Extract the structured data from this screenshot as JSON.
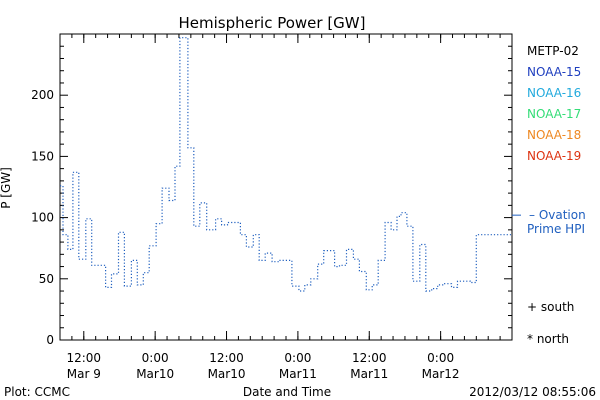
{
  "chart_data": {
    "type": "line",
    "title": "Hemispheric Power [GW]",
    "xlabel": "Date and Time",
    "ylabel": "P [GW]",
    "ylim": [
      0,
      250
    ],
    "yticks": [
      0,
      50,
      100,
      150,
      200
    ],
    "xlim": [
      "2012-03-09T08:00",
      "2012-03-12T12:00"
    ],
    "xticks": [
      {
        "time": "2012-03-09T12:00",
        "top": "12:00",
        "bottom": "Mar 9"
      },
      {
        "time": "2012-03-10T00:00",
        "top": "0:00",
        "bottom": "Mar10"
      },
      {
        "time": "2012-03-10T12:00",
        "top": "12:00",
        "bottom": "Mar10"
      },
      {
        "time": "2012-03-11T00:00",
        "top": "0:00",
        "bottom": "Mar11"
      },
      {
        "time": "2012-03-11T12:00",
        "top": "12:00",
        "bottom": "Mar11"
      },
      {
        "time": "2012-03-12T00:00",
        "top": "0:00",
        "bottom": "Mar12"
      }
    ],
    "legend": [
      {
        "name": "METP-02",
        "color": "#000000"
      },
      {
        "name": "NOAA-15",
        "color": "#1f3fbf"
      },
      {
        "name": "NOAA-16",
        "color": "#22aadd"
      },
      {
        "name": "NOAA-17",
        "color": "#33dd77"
      },
      {
        "name": "NOAA-18",
        "color": "#ee8822"
      },
      {
        "name": "NOAA-19",
        "color": "#dd3311"
      }
    ],
    "ovation_label": [
      "– Ovation",
      "Prime HPI"
    ],
    "ovation_value": 102,
    "south_label": "+ south",
    "north_label": "* north",
    "series": [
      {
        "color": "#1f5fbf",
        "style": "dotted-step",
        "points": [
          [
            "2012-03-09T08:00",
            126
          ],
          [
            "2012-03-09T08:30",
            86
          ],
          [
            "2012-03-09T09:20",
            74
          ],
          [
            "2012-03-09T10:10",
            137
          ],
          [
            "2012-03-09T11:10",
            66
          ],
          [
            "2012-03-09T12:20",
            99
          ],
          [
            "2012-03-09T13:20",
            61
          ],
          [
            "2012-03-09T15:40",
            43
          ],
          [
            "2012-03-09T16:40",
            54
          ],
          [
            "2012-03-09T17:50",
            88
          ],
          [
            "2012-03-09T18:50",
            44
          ],
          [
            "2012-03-09T20:00",
            65
          ],
          [
            "2012-03-09T21:00",
            45
          ],
          [
            "2012-03-09T22:00",
            55
          ],
          [
            "2012-03-09T23:00",
            77
          ],
          [
            "2012-03-10T00:10",
            95
          ],
          [
            "2012-03-10T01:10",
            124
          ],
          [
            "2012-03-10T02:20",
            114
          ],
          [
            "2012-03-10T03:20",
            142
          ],
          [
            "2012-03-10T04:10",
            247
          ],
          [
            "2012-03-10T05:30",
            157
          ],
          [
            "2012-03-10T06:30",
            93
          ],
          [
            "2012-03-10T07:30",
            112
          ],
          [
            "2012-03-10T08:40",
            90
          ],
          [
            "2012-03-10T10:10",
            99
          ],
          [
            "2012-03-10T11:10",
            94
          ],
          [
            "2012-03-10T12:10",
            96
          ],
          [
            "2012-03-10T14:20",
            86
          ],
          [
            "2012-03-10T15:20",
            76
          ],
          [
            "2012-03-10T16:30",
            86
          ],
          [
            "2012-03-10T17:30",
            65
          ],
          [
            "2012-03-10T18:30",
            71
          ],
          [
            "2012-03-10T19:40",
            64
          ],
          [
            "2012-03-10T20:40",
            65
          ],
          [
            "2012-03-10T23:00",
            44
          ],
          [
            "2012-03-11T00:10",
            40
          ],
          [
            "2012-03-11T01:10",
            45
          ],
          [
            "2012-03-11T02:10",
            50
          ],
          [
            "2012-03-11T03:20",
            62
          ],
          [
            "2012-03-11T04:20",
            73
          ],
          [
            "2012-03-11T05:20",
            73
          ],
          [
            "2012-03-11T06:10",
            60
          ],
          [
            "2012-03-11T07:00",
            61
          ],
          [
            "2012-03-11T08:10",
            74
          ],
          [
            "2012-03-11T09:20",
            66
          ],
          [
            "2012-03-11T10:20",
            56
          ],
          [
            "2012-03-11T11:30",
            41
          ],
          [
            "2012-03-11T12:30",
            45
          ],
          [
            "2012-03-11T13:30",
            65
          ],
          [
            "2012-03-11T14:40",
            96
          ],
          [
            "2012-03-11T15:40",
            90
          ],
          [
            "2012-03-11T16:40",
            101
          ],
          [
            "2012-03-11T17:20",
            104
          ],
          [
            "2012-03-11T18:20",
            93
          ],
          [
            "2012-03-11T19:20",
            48
          ],
          [
            "2012-03-11T20:30",
            78
          ],
          [
            "2012-03-11T21:30",
            40
          ],
          [
            "2012-03-11T22:30",
            42
          ],
          [
            "2012-03-11T23:30",
            45
          ],
          [
            "2012-03-12T00:40",
            46
          ],
          [
            "2012-03-12T01:50",
            43
          ],
          [
            "2012-03-12T02:50",
            48
          ],
          [
            "2012-03-12T03:50",
            48
          ],
          [
            "2012-03-12T05:00",
            47
          ],
          [
            "2012-03-12T06:00",
            86
          ],
          [
            "2012-03-12T07:00",
            86
          ]
        ]
      }
    ]
  },
  "footer": {
    "left": "Plot: CCMC",
    "center": "Date and Time",
    "right": "2012/03/12 08:55:06"
  }
}
